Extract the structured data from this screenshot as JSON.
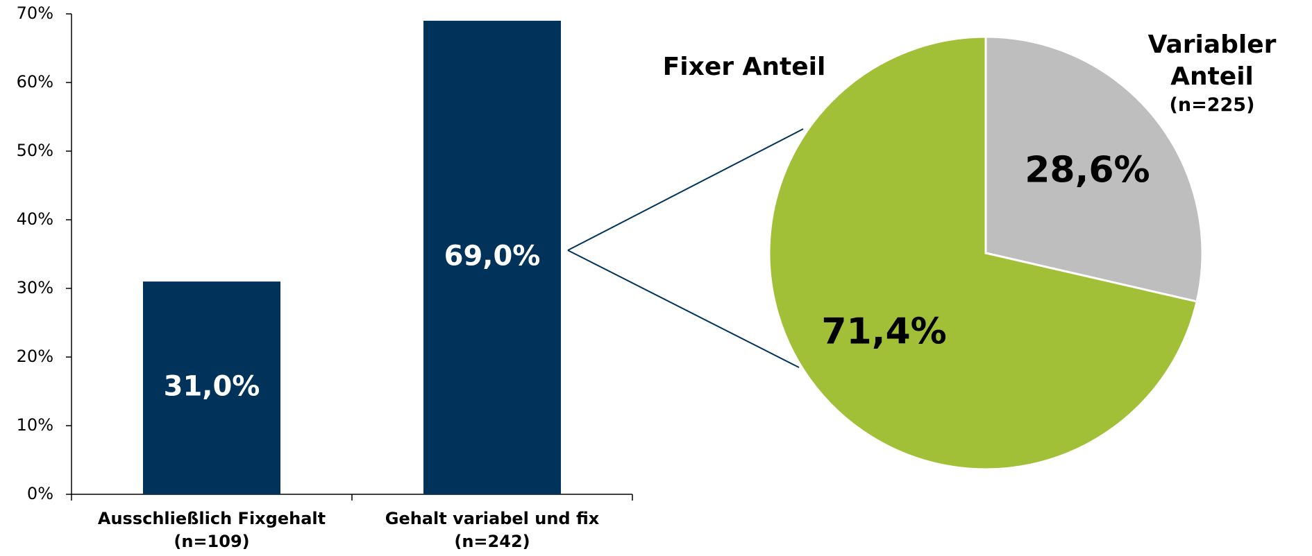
{
  "chart_data": [
    {
      "type": "bar",
      "categories": [
        "Ausschließlich Fixgehalt",
        "Gehalt variabel und fix"
      ],
      "category_notes": [
        "(n=109)",
        "(n=242)"
      ],
      "values": [
        31.0,
        69.0
      ],
      "value_labels": [
        "31,0%",
        "69,0%"
      ],
      "color": "#00325a",
      "ylim": [
        0,
        70
      ],
      "yticks": [
        {
          "value": 0,
          "label": "0%"
        },
        {
          "value": 10,
          "label": "10%"
        },
        {
          "value": 20,
          "label": "20%"
        },
        {
          "value": 30,
          "label": "30%"
        },
        {
          "value": 40,
          "label": "40%"
        },
        {
          "value": 50,
          "label": "50%"
        },
        {
          "value": 60,
          "label": "60%"
        },
        {
          "value": 70,
          "label": "70%"
        }
      ],
      "grid": false
    },
    {
      "type": "pie",
      "categories": [
        "Variabler Anteil",
        "Fixer Anteil"
      ],
      "values": [
        28.6,
        71.4
      ],
      "value_labels": [
        "28,6%",
        "71,4%"
      ],
      "colors": [
        "#bebebe",
        "#a2c037"
      ],
      "annotation": "(n=225)"
    }
  ]
}
